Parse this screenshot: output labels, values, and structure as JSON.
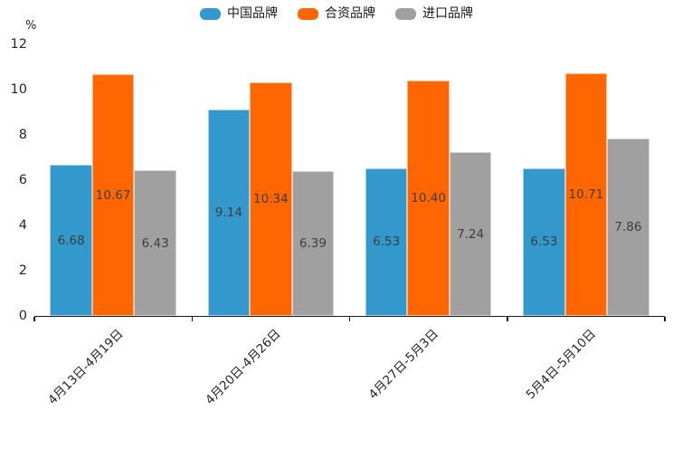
{
  "chart_data": {
    "type": "bar",
    "title": "",
    "xlabel": "",
    "ylabel": "%",
    "ylim": [
      0,
      12
    ],
    "yticks": [
      0,
      2,
      4,
      6,
      8,
      10,
      12
    ],
    "grid": false,
    "legend_position": "top-center",
    "value_label_decimals": 2,
    "categories": [
      "4月13日-4月19日",
      "4月20日-4月26日",
      "4月27日-5月3日",
      "5月4日-5月10日"
    ],
    "series": [
      {
        "name": "中国品牌",
        "color": "#3399CC",
        "values": [
          6.68,
          9.14,
          6.53,
          6.53
        ]
      },
      {
        "name": "合资品牌",
        "color": "#FF6600",
        "values": [
          10.67,
          10.34,
          10.4,
          10.71
        ]
      },
      {
        "name": "进口品牌",
        "color": "#A0A0A0",
        "values": [
          6.43,
          6.39,
          7.24,
          7.86
        ]
      }
    ]
  },
  "colors": {
    "axis": "#1a1a1a",
    "tick_text": "#262626",
    "value_label_text": "#3d3d3d",
    "background": "#ffffff"
  }
}
